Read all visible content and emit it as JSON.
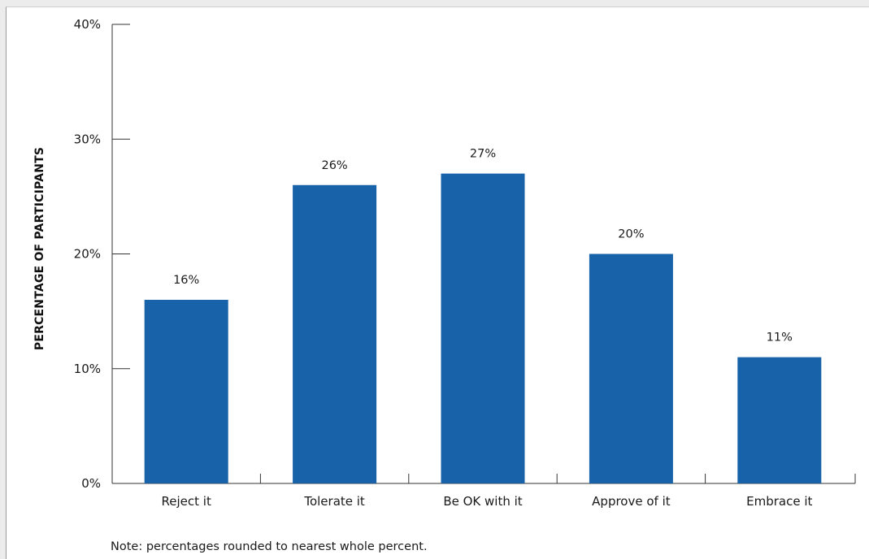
{
  "chart_data": {
    "type": "bar",
    "categories": [
      "Reject it",
      "Tolerate it",
      "Be OK with it",
      "Approve of it",
      "Embrace it"
    ],
    "values": [
      16,
      26,
      27,
      20,
      11
    ],
    "data_labels": [
      "16%",
      "26%",
      "27%",
      "20%",
      "11%"
    ],
    "title": "",
    "xlabel": "",
    "ylabel": "PERCENTAGE OF PARTICIPANTS",
    "ylim": [
      0,
      40
    ],
    "yticks": [
      0,
      10,
      20,
      30,
      40
    ],
    "ytick_labels": [
      "0%",
      "10%",
      "20%",
      "30%",
      "40%"
    ],
    "grid": false,
    "bar_color": "#1762a8",
    "note": "Note: percentages rounded to nearest whole percent."
  }
}
